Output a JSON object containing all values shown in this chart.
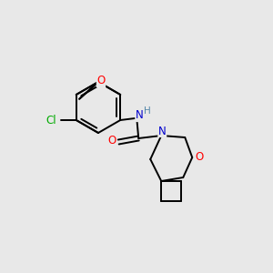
{
  "background_color": "#e8e8e8",
  "atom_colors": {
    "C": "#000000",
    "N": "#0000cd",
    "O": "#ff0000",
    "Cl": "#00aa00",
    "H": "#5588aa"
  },
  "bond_color": "#000000",
  "figure_size": [
    3.0,
    3.0
  ],
  "dpi": 100,
  "lw": 1.4
}
